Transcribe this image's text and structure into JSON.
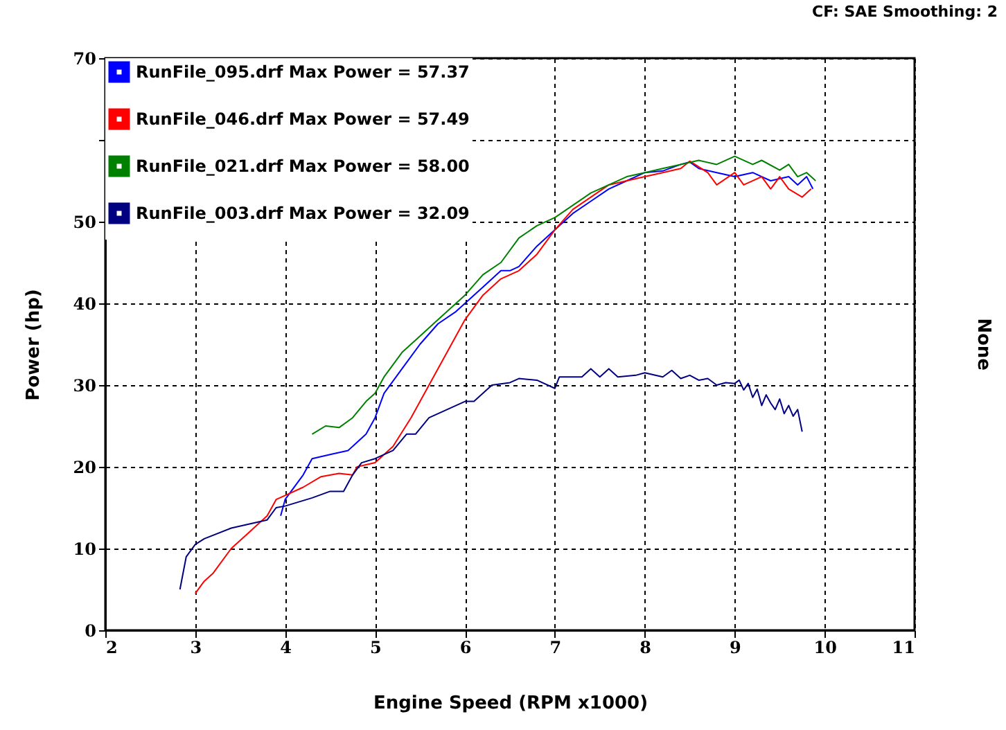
{
  "chart_data": {
    "type": "line",
    "xlabel": "Engine Speed (RPM x1000)",
    "ylabel": "Power (hp)",
    "y2label": "None",
    "annotations": [
      "CF: SAE  Smoothing: 2"
    ],
    "xlim": [
      2,
      11
    ],
    "xticks": [
      2,
      3,
      4,
      5,
      6,
      7,
      8,
      9,
      10,
      11
    ],
    "ylim": [
      0,
      70
    ],
    "yticks": [
      0,
      10,
      20,
      30,
      40,
      50,
      {
        "value": 60,
        "label": null
      },
      70
    ],
    "grid": true,
    "legend": "top left",
    "series": [
      {
        "name": "RunFile_095.drf Max Power = 57.37",
        "color": "#0000ff",
        "x": [
          3.95,
          4.0,
          4.2,
          4.3,
          4.5,
          4.7,
          4.9,
          5.0,
          5.1,
          5.3,
          5.5,
          5.7,
          5.9,
          6.0,
          6.2,
          6.4,
          6.5,
          6.6,
          6.8,
          7.0,
          7.2,
          7.4,
          7.6,
          7.8,
          8.0,
          8.2,
          8.4,
          8.5,
          8.6,
          8.8,
          9.0,
          9.2,
          9.4,
          9.6,
          9.7,
          9.8,
          9.87
        ],
        "values": [
          14,
          16,
          19,
          21,
          21.5,
          22,
          24,
          26,
          29,
          32,
          35,
          37.5,
          39,
          40,
          42,
          44,
          44,
          44.5,
          47,
          49,
          51,
          52.5,
          54,
          55,
          56,
          56.2,
          57,
          57.3,
          56.5,
          56,
          55.5,
          56,
          55,
          55.5,
          54.5,
          55.5,
          54
        ]
      },
      {
        "name": "RunFile_046.drf Max Power = 57.49",
        "color": "#ff0000",
        "x": [
          3.0,
          3.1,
          3.2,
          3.4,
          3.6,
          3.8,
          3.9,
          4.0,
          4.2,
          4.4,
          4.6,
          4.75,
          4.8,
          5.0,
          5.2,
          5.4,
          5.6,
          5.8,
          6.0,
          6.2,
          6.4,
          6.6,
          6.8,
          7.0,
          7.2,
          7.4,
          7.6,
          7.8,
          8.0,
          8.2,
          8.4,
          8.5,
          8.7,
          8.8,
          9.0,
          9.1,
          9.3,
          9.4,
          9.5,
          9.6,
          9.75,
          9.85
        ],
        "values": [
          4.5,
          6,
          7,
          10,
          12,
          14,
          16,
          16.5,
          17.5,
          18.8,
          19.2,
          19,
          20,
          20.5,
          22.5,
          26,
          30,
          34,
          38,
          41,
          43,
          44,
          46,
          49,
          51.5,
          53,
          54.5,
          55,
          55.5,
          56,
          56.5,
          57.4,
          56,
          54.5,
          56,
          54.5,
          55.5,
          54,
          55.5,
          54,
          53,
          54
        ]
      },
      {
        "name": "RunFile_021.drf Max Power = 58.00",
        "color": "#008000",
        "x": [
          4.3,
          4.45,
          4.6,
          4.75,
          4.9,
          5.0,
          5.1,
          5.3,
          5.5,
          5.7,
          5.9,
          6.0,
          6.2,
          6.4,
          6.6,
          6.8,
          7.0,
          7.2,
          7.4,
          7.6,
          7.8,
          8.0,
          8.2,
          8.4,
          8.6,
          8.8,
          9.0,
          9.2,
          9.3,
          9.5,
          9.6,
          9.7,
          9.8,
          9.9
        ],
        "values": [
          24,
          25,
          24.8,
          26,
          28,
          29,
          31,
          34,
          36,
          38,
          40,
          41,
          43.5,
          45,
          48,
          49.5,
          50.5,
          52,
          53.5,
          54.5,
          55.5,
          56,
          56.5,
          57,
          57.5,
          57,
          58,
          57,
          57.5,
          56.3,
          57,
          55.5,
          56,
          55
        ]
      },
      {
        "name": "RunFile_003.drf Max Power = 32.09",
        "color": "#000080",
        "x": [
          2.83,
          2.9,
          3.0,
          3.1,
          3.4,
          3.8,
          3.9,
          4.0,
          4.3,
          4.5,
          4.65,
          4.75,
          4.85,
          5.0,
          5.2,
          5.35,
          5.45,
          5.6,
          5.8,
          6.0,
          6.1,
          6.3,
          6.5,
          6.6,
          6.8,
          7.0,
          7.05,
          7.3,
          7.4,
          7.5,
          7.6,
          7.7,
          7.9,
          8.0,
          8.2,
          8.3,
          8.4,
          8.5,
          8.6,
          8.7,
          8.8,
          8.9,
          9.0,
          9.05,
          9.1,
          9.15,
          9.2,
          9.25,
          9.3,
          9.35,
          9.4,
          9.45,
          9.5,
          9.55,
          9.6,
          9.65,
          9.7,
          9.75
        ],
        "values": [
          5,
          9,
          10.5,
          11.2,
          12.5,
          13.5,
          15,
          15.2,
          16.2,
          17,
          17,
          19,
          20.5,
          21,
          22,
          24,
          24,
          26,
          27,
          28,
          28,
          30,
          30.3,
          30.8,
          30.6,
          29.6,
          31,
          31,
          32,
          31,
          32,
          31,
          31.2,
          31.5,
          31,
          31.8,
          30.8,
          31.2,
          30.6,
          30.8,
          30,
          30.3,
          30.2,
          30.6,
          29.4,
          30.2,
          28.5,
          29.5,
          27.5,
          28.8,
          27.8,
          27,
          28.3,
          26.5,
          27.5,
          26.2,
          27,
          24.3
        ]
      }
    ]
  }
}
